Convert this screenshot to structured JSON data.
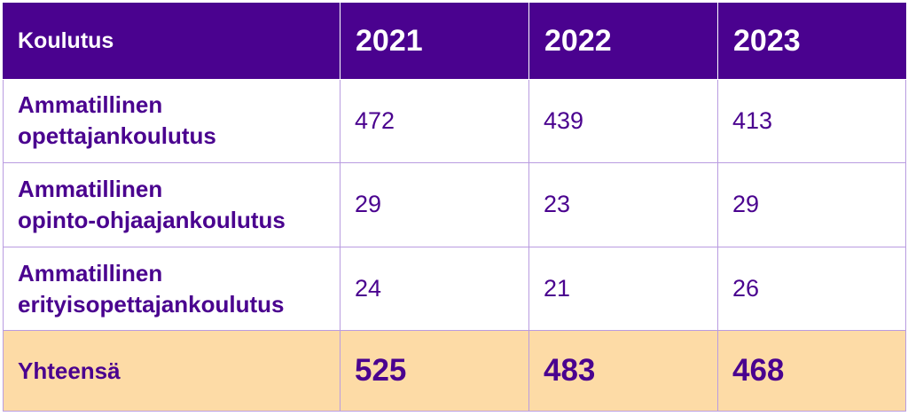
{
  "table": {
    "header": {
      "label": "Koulutus",
      "years": [
        "2021",
        "2022",
        "2023"
      ]
    },
    "rows": [
      {
        "label_lines": [
          "Ammatillinen",
          "opettajankoulutus"
        ],
        "values": [
          "472",
          "439",
          "413"
        ]
      },
      {
        "label_lines": [
          "Ammatillinen",
          "opinto-ohjaajankoulutus"
        ],
        "values": [
          "29",
          "23",
          "29"
        ]
      },
      {
        "label_lines": [
          "Ammatillinen",
          "erityisopettajankoulutus"
        ],
        "values": [
          "24",
          "21",
          "26"
        ]
      }
    ],
    "total": {
      "label": "Yhteensä",
      "values": [
        "525",
        "483",
        "468"
      ]
    }
  },
  "colors": {
    "header_bg": "#4a028f",
    "text": "#4a028f",
    "grid": "#b99ce0",
    "total_bg": "#fddba6"
  }
}
